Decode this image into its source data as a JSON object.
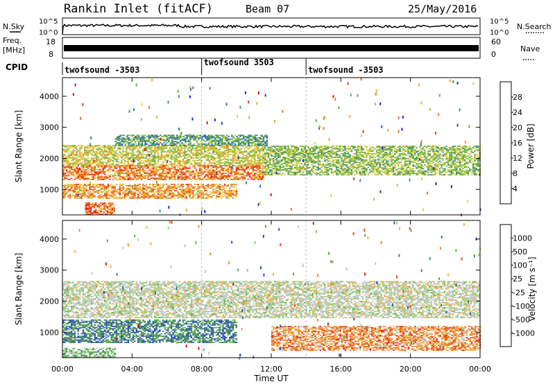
{
  "header": {
    "site": "Rankin Inlet (fitACF)",
    "beam": "Beam 07",
    "date": "25/May/2016"
  },
  "strips": {
    "nsky_label": "N.Sky",
    "nsearch_label": "N.Search",
    "nsky_ticks": [
      "10^5",
      "10^0"
    ],
    "nsearch_ticks": [
      "10^5",
      "10^0"
    ],
    "freq_label": "Freq.",
    "freq_unit": "[MHz]",
    "freq_ticks": [
      "18",
      "8"
    ],
    "nave_label": "Nave",
    "nave_ticks": [
      "60",
      "0"
    ],
    "cpid_label": "CPID",
    "cpid_segments": [
      {
        "label": "twofsound -3503",
        "start_hour": 0
      },
      {
        "label": "twofsound 3503",
        "start_hour": 8
      },
      {
        "label": "twofsound -3503",
        "start_hour": 14
      }
    ]
  },
  "colors": {
    "power": [
      "#1a1aff",
      "#2b3fa0",
      "#2f6aa8",
      "#3f8f6a",
      "#6ab04a",
      "#a8c83a",
      "#e6d03a",
      "#f0a030",
      "#f07020",
      "#e83a1a",
      "#e01010"
    ],
    "velocity": [
      "#e01010",
      "#f04a10",
      "#f08a20",
      "#f0b040",
      "#c8c8c8",
      "#c8c8c8",
      "#8fd080",
      "#5ab040",
      "#3a8a5a",
      "#3a60a0",
      "#2040c0"
    ]
  },
  "chart_data": [
    {
      "type": "heatmap",
      "title": "Power",
      "xlabel": "Time UT",
      "ylabel": "Slant Range [km]",
      "x_ticks": [
        "00:00",
        "04:00",
        "08:00",
        "12:00",
        "16:00",
        "20:00",
        "00:00"
      ],
      "xlim_hours": [
        0,
        24
      ],
      "ylim": [
        180,
        4600
      ],
      "y_ticks": [
        1000,
        2000,
        3000,
        4000
      ],
      "colorbar": {
        "label": "Power [dB]",
        "ticks": [
          "28",
          "24",
          "20",
          "16",
          "12",
          "8",
          "4"
        ],
        "range": [
          0,
          30
        ]
      },
      "bands": [
        {
          "t0": 0,
          "t1": 11.5,
          "r0": 1750,
          "r1": 2400,
          "level": 0.55
        },
        {
          "t0": 0,
          "t1": 11.5,
          "r0": 1300,
          "r1": 1750,
          "level": 0.75
        },
        {
          "t0": 11.5,
          "t1": 24,
          "r0": 1450,
          "r1": 2400,
          "level": 0.45
        },
        {
          "t0": 3,
          "t1": 11.8,
          "r0": 2400,
          "r1": 2750,
          "level": 0.35
        },
        {
          "t0": 0,
          "t1": 10,
          "r0": 700,
          "r1": 1150,
          "level": 0.7
        },
        {
          "t0": 1.3,
          "t1": 3,
          "r0": 180,
          "r1": 550,
          "level": 0.8
        }
      ]
    },
    {
      "type": "heatmap",
      "title": "Velocity",
      "xlabel": "Time UT",
      "ylabel": "Slant Range [km]",
      "x_ticks": [
        "00:00",
        "04:00",
        "08:00",
        "12:00",
        "16:00",
        "20:00",
        "00:00"
      ],
      "xlim_hours": [
        0,
        24
      ],
      "ylim": [
        180,
        4600
      ],
      "y_ticks": [
        1000,
        2000,
        3000,
        4000
      ],
      "colorbar": {
        "label": "Velocity [m s⁻¹]",
        "ticks": [
          "1000",
          "500",
          "100",
          "25",
          "-25",
          "-100",
          "-500",
          "-1000"
        ],
        "range": [
          -1000,
          1000
        ]
      },
      "bands": [
        {
          "t0": 0,
          "t1": 24,
          "r0": 1450,
          "r1": 2650,
          "level": 0.48
        },
        {
          "t0": 0,
          "t1": 10,
          "r0": 650,
          "r1": 1400,
          "level": 0.8
        },
        {
          "t0": 12,
          "t1": 24,
          "r0": 400,
          "r1": 1200,
          "level": 0.25
        },
        {
          "t0": 0,
          "t1": 3,
          "r0": 180,
          "r1": 500,
          "level": 0.65
        }
      ]
    }
  ]
}
